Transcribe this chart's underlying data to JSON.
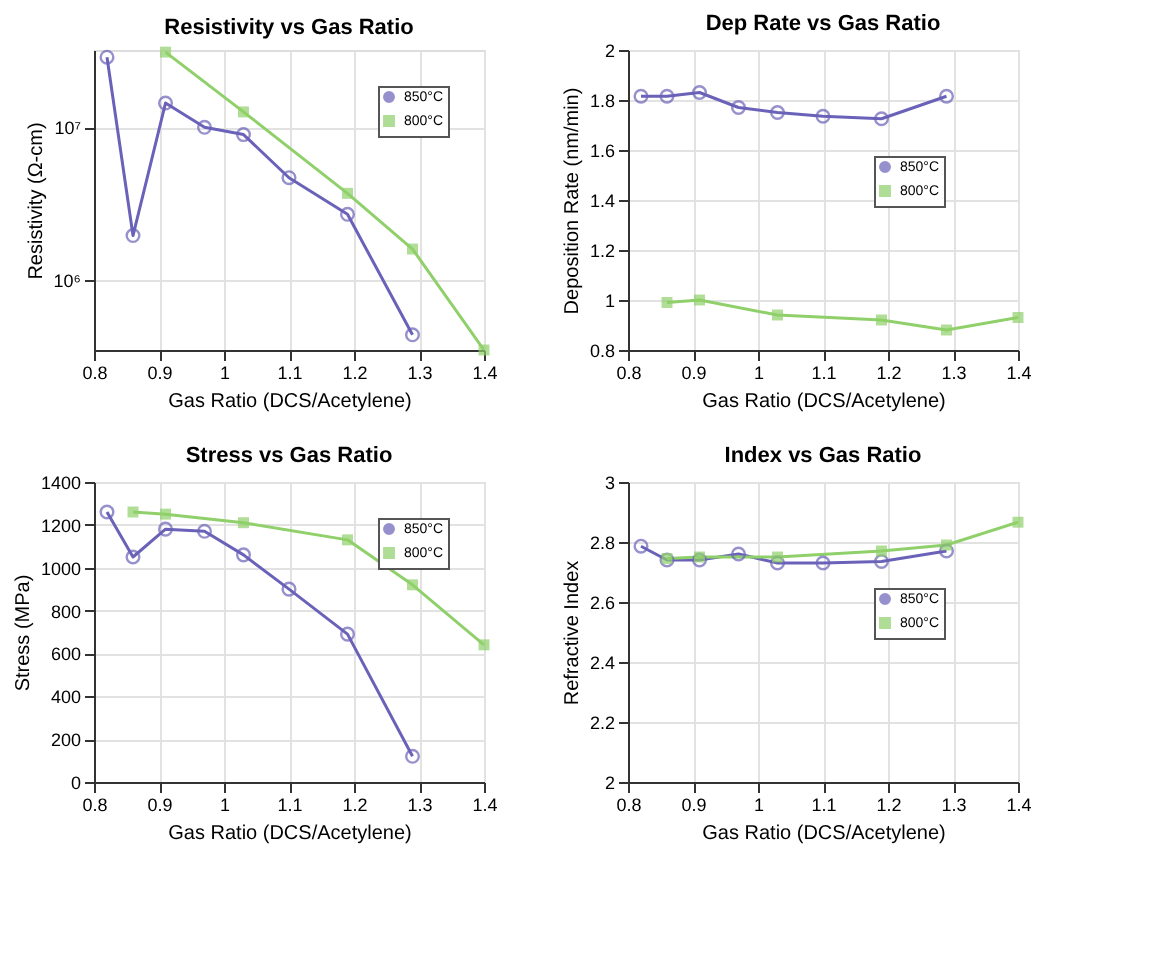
{
  "chart_data": [
    {
      "type": "line",
      "title": "Resistivity vs Gas Ratio",
      "xlabel": "Gas Ratio (DCS/Acetylene)",
      "ylabel": "Resistivity (Ω-cm)",
      "log": true,
      "grid": true,
      "legend": "top right",
      "xlim": [
        0.8,
        1.4
      ],
      "xticks": [
        0.8,
        0.9,
        1,
        1.1,
        1.2,
        1.3,
        1.4
      ],
      "ylim": [
        350000,
        32000000
      ],
      "yticks": [
        {
          "value": 1000000,
          "label": "10⁶"
        },
        {
          "value": 10000000,
          "label": "10⁷"
        }
      ],
      "series": [
        {
          "name": "850°C",
          "color": "#6a62b8",
          "marker": "circle",
          "x": [
            0.82,
            0.86,
            0.91,
            0.97,
            1.03,
            1.1,
            1.19,
            1.29
          ],
          "values": [
            28700000,
            1960000,
            14400000,
            10000000,
            8960000,
            4680000,
            2700000,
            440000
          ]
        },
        {
          "name": "800°C",
          "color": "#8fd06a",
          "marker": "square",
          "x": [
            0.91,
            1.03,
            1.19,
            1.29,
            1.4
          ],
          "values": [
            31000000,
            12600000,
            3700000,
            1600000,
            350000
          ]
        }
      ]
    },
    {
      "type": "line",
      "title": "Dep Rate vs Gas Ratio",
      "xlabel": "Gas Ratio (DCS/Acetylene)",
      "ylabel": "Deposition Rate (nm/min)",
      "grid": true,
      "legend": "right",
      "xlim": [
        0.8,
        1.4
      ],
      "xticks": [
        0.8,
        0.9,
        1,
        1.1,
        1.2,
        1.3,
        1.4
      ],
      "ylim": [
        0.8,
        2
      ],
      "yticks": [
        0.8,
        1,
        1.2,
        1.4,
        1.6,
        1.8,
        2
      ],
      "series": [
        {
          "name": "850°C",
          "color": "#6a62b8",
          "marker": "circle",
          "x": [
            0.82,
            0.86,
            0.91,
            0.97,
            1.03,
            1.1,
            1.19,
            1.29
          ],
          "values": [
            1.815,
            1.815,
            1.83,
            1.77,
            1.75,
            1.735,
            1.725,
            1.815
          ]
        },
        {
          "name": "800°C",
          "color": "#8fd06a",
          "marker": "square",
          "x": [
            0.86,
            0.91,
            1.03,
            1.19,
            1.29,
            1.4
          ],
          "values": [
            0.99,
            1.0,
            0.94,
            0.92,
            0.88,
            0.93
          ]
        }
      ]
    },
    {
      "type": "line",
      "title": "Stress vs Gas Ratio",
      "xlabel": "Gas Ratio (DCS/Acetylene)",
      "ylabel": "Stress (MPa)",
      "grid": true,
      "legend": "top right",
      "xlim": [
        0.8,
        1.4
      ],
      "xticks": [
        0.8,
        0.9,
        1,
        1.1,
        1.2,
        1.3,
        1.4
      ],
      "ylim": [
        0,
        1400
      ],
      "yticks": [
        0,
        200,
        400,
        600,
        800,
        1000,
        1200,
        1400
      ],
      "series": [
        {
          "name": "850°C",
          "color": "#6a62b8",
          "marker": "circle",
          "x": [
            0.82,
            0.86,
            0.91,
            0.97,
            1.03,
            1.1,
            1.19,
            1.29
          ],
          "values": [
            1260,
            1050,
            1180,
            1170,
            1060,
            900,
            690,
            120
          ]
        },
        {
          "name": "800°C",
          "color": "#8fd06a",
          "marker": "square",
          "x": [
            0.86,
            0.91,
            1.03,
            1.19,
            1.29,
            1.4
          ],
          "values": [
            1260,
            1250,
            1210,
            1130,
            920,
            640
          ]
        }
      ]
    },
    {
      "type": "line",
      "title": "Index vs Gas Ratio",
      "xlabel": "Gas Ratio (DCS/Acetylene)",
      "ylabel": "Refractive Index",
      "grid": true,
      "legend": "right",
      "xlim": [
        0.8,
        1.4
      ],
      "xticks": [
        0.8,
        0.9,
        1,
        1.1,
        1.2,
        1.3,
        1.4
      ],
      "ylim": [
        2,
        3
      ],
      "yticks": [
        2,
        2.2,
        2.4,
        2.6,
        2.8,
        3
      ],
      "series": [
        {
          "name": "850°C",
          "color": "#6a62b8",
          "marker": "circle",
          "x": [
            0.82,
            0.86,
            0.91,
            0.97,
            1.03,
            1.1,
            1.19,
            1.29
          ],
          "values": [
            2.786,
            2.74,
            2.74,
            2.76,
            2.73,
            2.73,
            2.735,
            2.77
          ]
        },
        {
          "name": "800°C",
          "color": "#8fd06a",
          "marker": "square",
          "x": [
            0.86,
            0.91,
            1.03,
            1.19,
            1.29,
            1.4
          ],
          "values": [
            2.745,
            2.75,
            2.75,
            2.77,
            2.79,
            2.866
          ]
        }
      ]
    }
  ]
}
